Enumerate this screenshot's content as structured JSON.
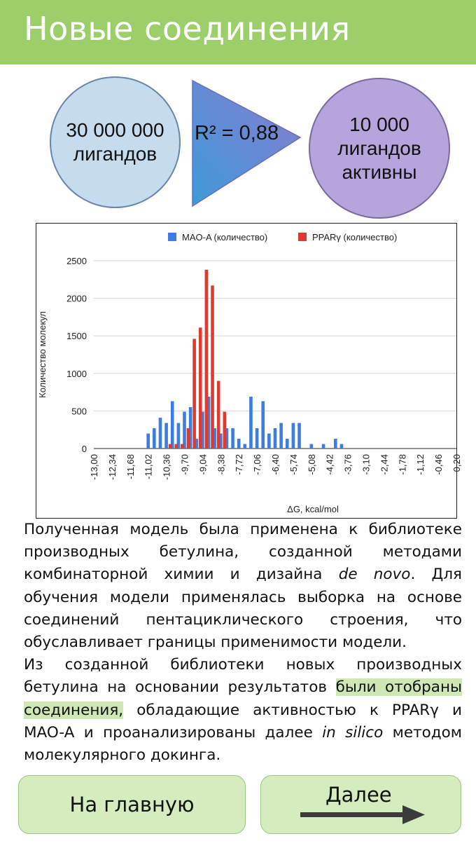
{
  "header": {
    "title": "Новые соединения"
  },
  "flow": {
    "left_circle": [
      "30 000 000",
      "лигандов"
    ],
    "triangle_label": "R² = 0,88",
    "right_circle": [
      "10 000",
      "лигандов",
      "активны"
    ]
  },
  "chart_data": {
    "type": "bar",
    "ylabel": "Количество  молекул",
    "xlabel": "ΔG, kcal/mol",
    "ylim": [
      0,
      2500
    ],
    "yticks": [
      "0",
      "500",
      "1000",
      "1500",
      "2000",
      "2500"
    ],
    "grid": true,
    "legend_position": "top",
    "x_tick_labels": [
      "-13,00",
      "-12,34",
      "-11,68",
      "-11,02",
      "-10,36",
      "-9,70",
      "-9,04",
      "-8,38",
      "-7,72",
      "-7,06",
      "-6,40",
      "-5,74",
      "-5,08",
      "-4,42",
      "-3,76",
      "-3,10",
      "-2,44",
      "-1,78",
      "-1,12",
      "-0,46",
      "0,20"
    ],
    "series": [
      {
        "name": "MAO-A  (количество)",
        "color": "#3b7de2",
        "points": [
          {
            "x": -11.02,
            "y": 200
          },
          {
            "x": -10.8,
            "y": 270
          },
          {
            "x": -10.58,
            "y": 410
          },
          {
            "x": -10.36,
            "y": 340
          },
          {
            "x": -10.14,
            "y": 630
          },
          {
            "x": -9.92,
            "y": 340
          },
          {
            "x": -9.7,
            "y": 490
          },
          {
            "x": -9.48,
            "y": 550
          },
          {
            "x": -9.26,
            "y": 130
          },
          {
            "x": -9.04,
            "y": 490
          },
          {
            "x": -8.82,
            "y": 690
          },
          {
            "x": -8.6,
            "y": 270
          },
          {
            "x": -8.38,
            "y": 200
          },
          {
            "x": -8.16,
            "y": 270
          },
          {
            "x": -7.94,
            "y": 270
          },
          {
            "x": -7.72,
            "y": 130
          },
          {
            "x": -7.5,
            "y": 60
          },
          {
            "x": -7.28,
            "y": 690
          },
          {
            "x": -7.06,
            "y": 270
          },
          {
            "x": -6.84,
            "y": 630
          },
          {
            "x": -6.62,
            "y": 200
          },
          {
            "x": -6.4,
            "y": 270
          },
          {
            "x": -6.18,
            "y": 340
          },
          {
            "x": -5.96,
            "y": 130
          },
          {
            "x": -5.74,
            "y": 340
          },
          {
            "x": -5.52,
            "y": 340
          },
          {
            "x": -5.08,
            "y": 60
          },
          {
            "x": -4.64,
            "y": 60
          },
          {
            "x": -4.2,
            "y": 130
          },
          {
            "x": -3.98,
            "y": 60
          }
        ]
      },
      {
        "name": "PPARγ (количество)",
        "color": "#e03a2f",
        "points": [
          {
            "x": -10.22,
            "y": 60
          },
          {
            "x": -10.0,
            "y": 60
          },
          {
            "x": -9.78,
            "y": 60
          },
          {
            "x": -9.56,
            "y": 270
          },
          {
            "x": -9.34,
            "y": 1460
          },
          {
            "x": -9.12,
            "y": 1610
          },
          {
            "x": -8.9,
            "y": 2380
          },
          {
            "x": -8.68,
            "y": 2170
          },
          {
            "x": -8.46,
            "y": 900
          },
          {
            "x": -8.24,
            "y": 490
          }
        ]
      }
    ]
  },
  "text": {
    "p1_a": "Полученная модель была применена к библиотеке производных бетулина, созданной методами комбинаторной химии и дизайна ",
    "p1_em": "de novo",
    "p1_b": ". Для обучения модели применялась выборка на основе соединений пентациклического строения, что обуславливает границы применимости модели.",
    "p2_a": "Из созданной библиотеки новых производных бетулина на основании результатов ",
    "p2_hl": "были отобраны соединения,",
    "p2_b": " обладающие активностью к PPARγ и MAO-A и проанализированы далее ",
    "p2_em": "in silico",
    "p2_c": " методом молекулярного докинга."
  },
  "buttons": {
    "home": "На главную",
    "next": "Далее"
  },
  "colors": {
    "header": "#9ccf6a",
    "button_bg": "#d4ecbe",
    "highlight": "#cfe7b4"
  }
}
